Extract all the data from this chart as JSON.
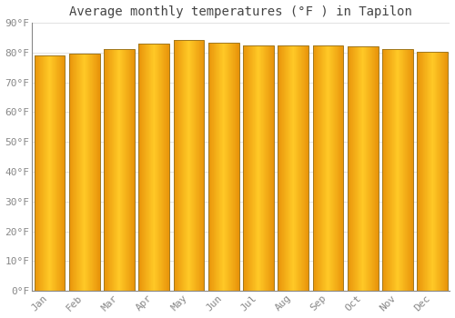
{
  "title": "Average monthly temperatures (°F ) in Tapilon",
  "months": [
    "Jan",
    "Feb",
    "Mar",
    "Apr",
    "May",
    "Jun",
    "Jul",
    "Aug",
    "Sep",
    "Oct",
    "Nov",
    "Dec"
  ],
  "values": [
    79.0,
    79.5,
    81.2,
    83.1,
    84.2,
    83.3,
    82.2,
    82.4,
    82.2,
    82.0,
    81.1,
    80.1
  ],
  "ylim": [
    0,
    90
  ],
  "yticks": [
    0,
    10,
    20,
    30,
    40,
    50,
    60,
    70,
    80,
    90
  ],
  "ytick_labels": [
    "0°F",
    "10°F",
    "20°F",
    "30°F",
    "40°F",
    "50°F",
    "60°F",
    "70°F",
    "80°F",
    "90°F"
  ],
  "bar_color_edge": "#E8930A",
  "bar_color_center": "#FFC926",
  "bar_border_color": "#A07820",
  "background_color": "#FFFFFF",
  "grid_color": "#DDDDDD",
  "title_fontsize": 10,
  "tick_fontsize": 8,
  "title_color": "#444444",
  "tick_color": "#888888",
  "bar_width": 0.88,
  "n_strips": 60
}
